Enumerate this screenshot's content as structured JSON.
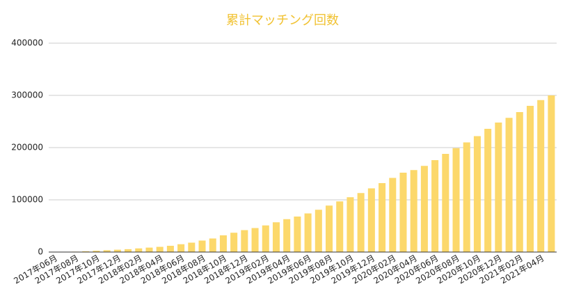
{
  "chart_data": {
    "type": "bar",
    "title": "累計マッチング回数",
    "categories": [
      "2017年06月",
      null,
      "2017年08月",
      null,
      "2017年10月",
      null,
      "2017年12月",
      null,
      "2018年02月",
      null,
      "2018年04月",
      null,
      "2018年06月",
      null,
      "2018年08月",
      null,
      "2018年10月",
      null,
      "2018年12月",
      null,
      "2019年02月",
      null,
      "2019年04月",
      null,
      "2019年06月",
      null,
      "2019年08月",
      null,
      "2019年10月",
      null,
      "2019年12月",
      null,
      "2020年02月",
      null,
      "2020年04月",
      null,
      "2020年06月",
      null,
      "2020年08月",
      null,
      "2020年10月",
      null,
      "2020年12月",
      null,
      "2021年02月",
      null,
      "2021年04月",
      null
    ],
    "values": [
      100,
      300,
      800,
      1500,
      2500,
      3500,
      4500,
      5500,
      7000,
      8500,
      10000,
      12000,
      15000,
      18000,
      22000,
      26000,
      32000,
      37000,
      42000,
      46000,
      51000,
      57000,
      63000,
      68000,
      74000,
      81000,
      89000,
      97000,
      105000,
      113000,
      122000,
      132000,
      142000,
      152000,
      157000,
      165000,
      176000,
      188000,
      199000,
      210000,
      222000,
      236000,
      248000,
      257000,
      268000,
      280000,
      291000,
      300000
    ],
    "color": "#fcd86b",
    "ylim": [
      0,
      400000
    ],
    "yticks": [
      0,
      100000,
      200000,
      300000,
      400000
    ],
    "grid": true
  }
}
